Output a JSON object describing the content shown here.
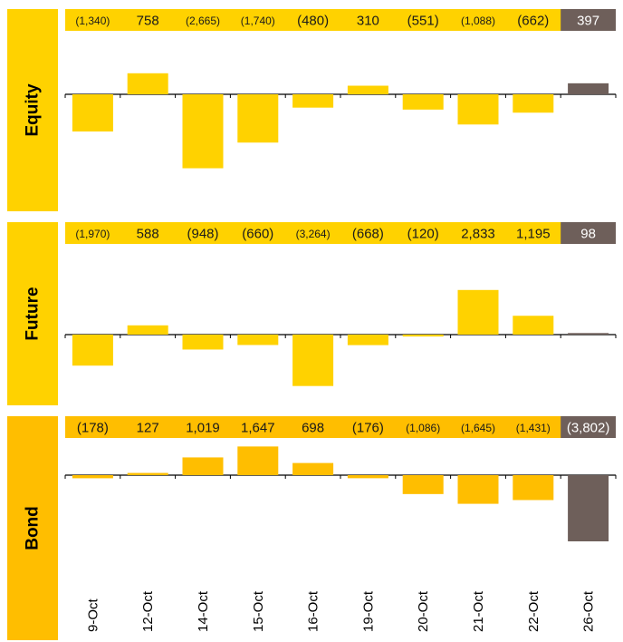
{
  "chart_data": {
    "type": "bar",
    "categories": [
      "9-Oct",
      "12-Oct",
      "14-Oct",
      "15-Oct",
      "16-Oct",
      "19-Oct",
      "20-Oct",
      "21-Oct",
      "22-Oct",
      "26-Oct"
    ],
    "series": [
      {
        "name": "Equity",
        "values": [
          -1340,
          758,
          -2665,
          -1740,
          -480,
          310,
          -551,
          -1088,
          -662,
          397
        ],
        "labels": [
          "(1,340)",
          "758",
          "(2,665)",
          "(1,740)",
          "(480)",
          "310",
          "(551)",
          "(1,088)",
          "(662)",
          "397"
        ],
        "color": "#FFD200",
        "strip_color": "#FFD200"
      },
      {
        "name": "Future",
        "values": [
          -1970,
          588,
          -948,
          -660,
          -3264,
          -668,
          -120,
          2833,
          1195,
          98
        ],
        "labels": [
          "(1,970)",
          "588",
          "(948)",
          "(660)",
          "(3,264)",
          "(668)",
          "(120)",
          "2,833",
          "1,195",
          "98"
        ],
        "color": "#FFD200",
        "strip_color": "#FFD200"
      },
      {
        "name": "Bond",
        "values": [
          -178,
          127,
          1019,
          1647,
          698,
          -176,
          -1086,
          -1645,
          -1431,
          -3802
        ],
        "labels": [
          "(178)",
          "127",
          "1,019",
          "1,647",
          "698",
          "(176)",
          "(1,086)",
          "(1,645)",
          "(1,431)",
          "(3,802)"
        ],
        "color": "#FFBE00",
        "strip_color": "#FFBE00"
      }
    ],
    "highlight_last_color": "#6E5F5A",
    "label_panel_colors": [
      "#FFD200",
      "#FFD200",
      "#FFBE00"
    ],
    "title": "",
    "xlabel": "",
    "ylabel": "",
    "grid": false,
    "legend": "none"
  }
}
